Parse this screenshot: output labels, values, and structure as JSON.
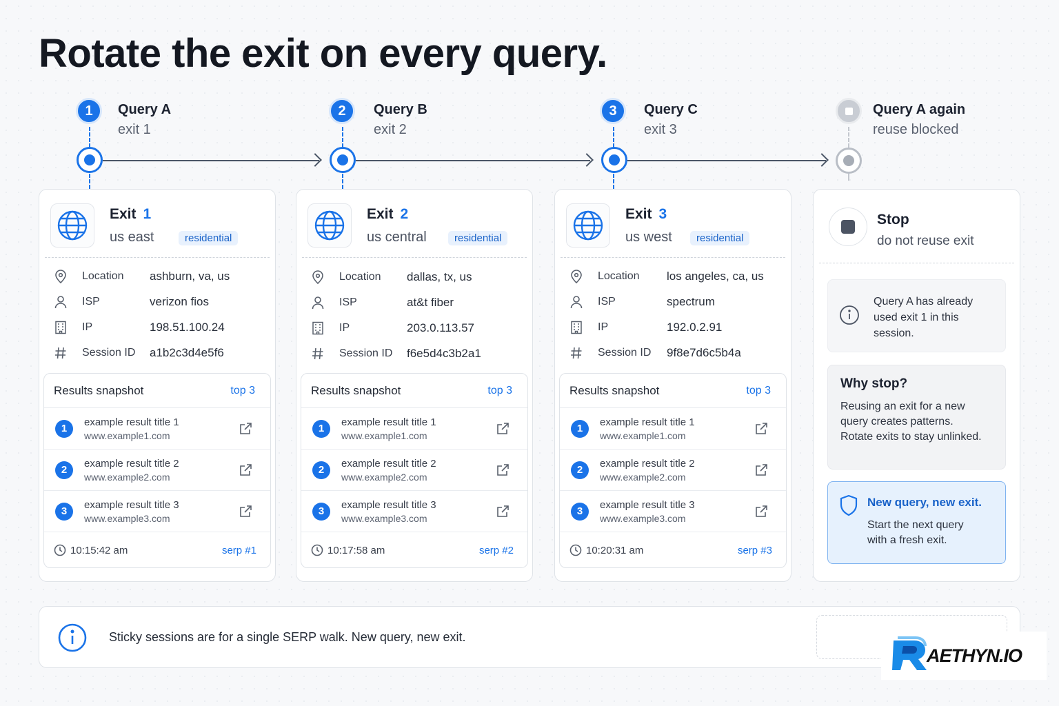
{
  "title": "Rotate the exit on every query.",
  "steps": [
    {
      "num": "1",
      "query": "Query A",
      "sub": "exit 1"
    },
    {
      "num": "2",
      "query": "Query B",
      "sub": "exit 2"
    },
    {
      "num": "3",
      "query": "Query C",
      "sub": "exit 3"
    },
    {
      "num": "",
      "query": "Query A again",
      "sub": "reuse blocked"
    }
  ],
  "labels": {
    "location": "Location",
    "isp": "ISP",
    "ip": "IP",
    "session": "Session ID",
    "snapshot": "Results snapshot",
    "top": "top 3"
  },
  "cards": [
    {
      "exit_label": "Exit",
      "exit_num": "1",
      "region": "us east",
      "tag": "residential",
      "location": "ashburn, va, us",
      "isp": "verizon fios",
      "ip": "198.51.100.24",
      "session": "a1b2c3d4e5f6",
      "time": "10:15:42 am",
      "serp": "serp #1"
    },
    {
      "exit_label": "Exit",
      "exit_num": "2",
      "region": "us central",
      "tag": "residential",
      "location": "dallas, tx, us",
      "isp": "at&t fiber",
      "ip": "203.0.113.57",
      "session": "f6e5d4c3b2a1",
      "time": "10:17:58 am",
      "serp": "serp #2"
    },
    {
      "exit_label": "Exit",
      "exit_num": "3",
      "region": "us west",
      "tag": "residential",
      "location": "los angeles, ca, us",
      "isp": "spectrum",
      "ip": "192.0.2.91",
      "session": "9f8e7d6c5b4a",
      "time": "10:20:31 am",
      "serp": "serp #3"
    }
  ],
  "results": [
    {
      "num": "1",
      "title": "example result title 1",
      "url": "www.example1.com"
    },
    {
      "num": "2",
      "title": "example result title 2",
      "url": "www.example2.com"
    },
    {
      "num": "3",
      "title": "example result title 3",
      "url": "www.example3.com"
    }
  ],
  "stop": {
    "title": "Stop",
    "sub": "do not reuse exit",
    "note": "Query A has already used exit 1 in this session.",
    "why_title": "Why stop?",
    "why_body": "Reusing an exit for a new query creates patterns. Rotate exits to stay unlinked.",
    "new_title": "New query, new exit.",
    "new_body": "Start the next query with a fresh exit."
  },
  "footer": {
    "text": "Sticky sessions are for a single SERP walk. New query, new exit."
  },
  "logo": {
    "text": "AETHYN.IO"
  },
  "colors": {
    "accent": "#1a73e8",
    "muted": "#a7adb6"
  },
  "icons": [
    "globe-icon",
    "location-pin-icon",
    "user-icon",
    "building-icon",
    "hash-icon",
    "external-link-icon",
    "clock-icon",
    "info-icon",
    "shield-icon",
    "stop-icon"
  ]
}
